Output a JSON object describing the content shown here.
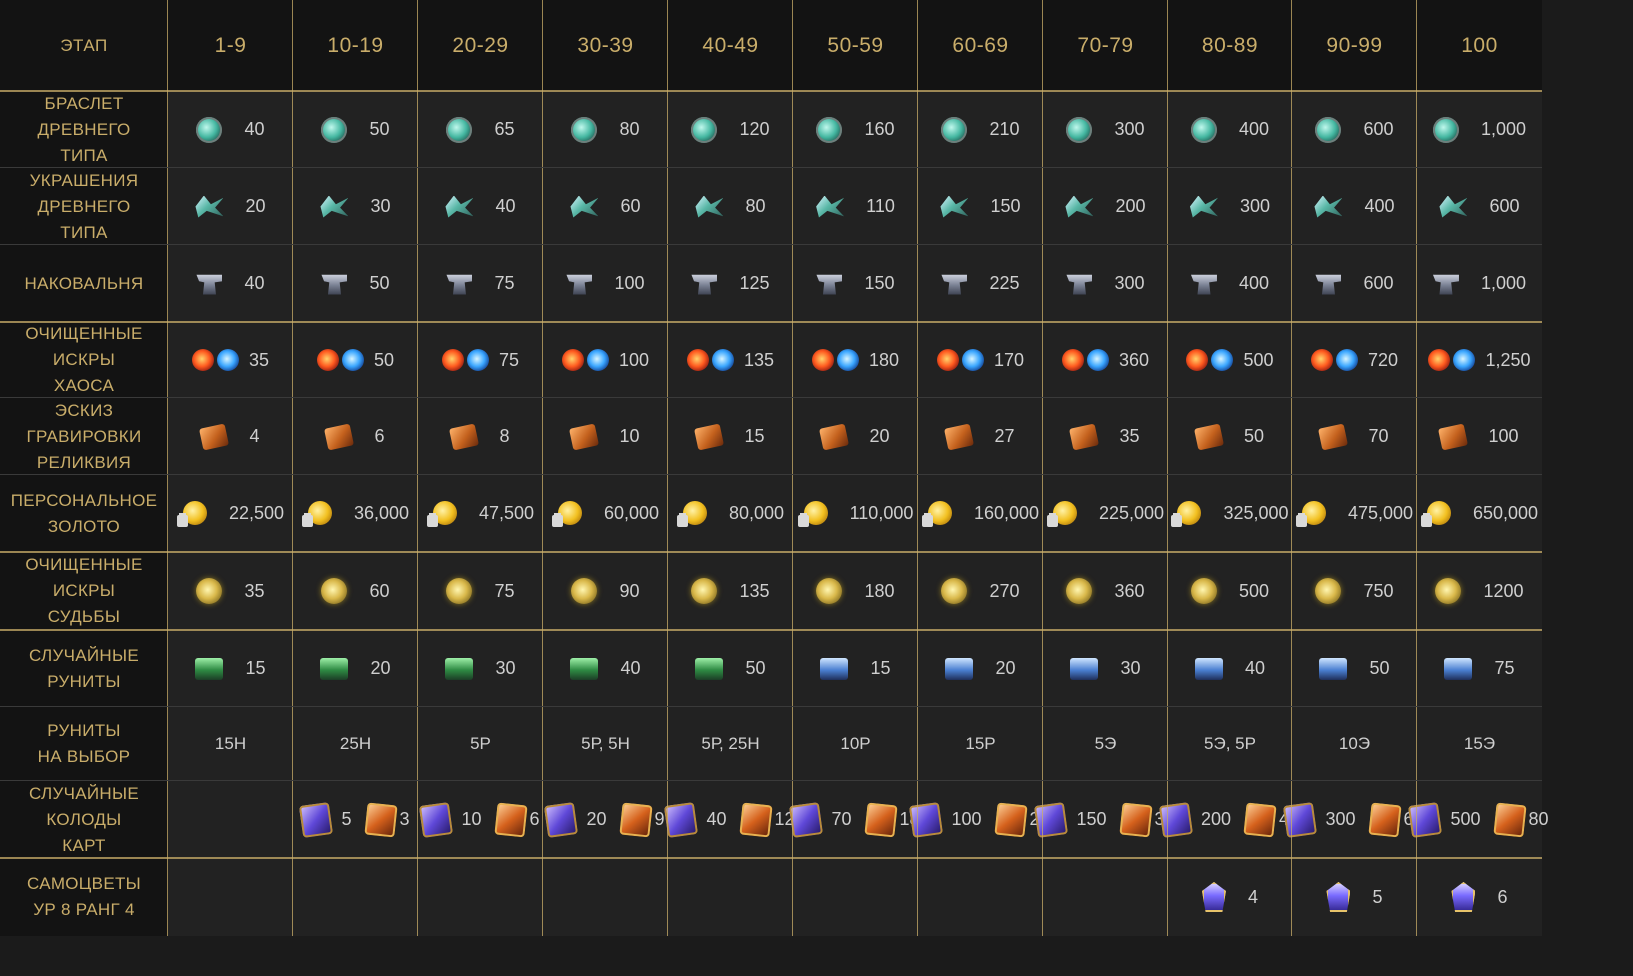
{
  "header": {
    "stage_label": "ЭТАП",
    "columns": [
      "1-9",
      "10-19",
      "20-29",
      "30-39",
      "40-49",
      "50-59",
      "60-69",
      "70-79",
      "80-89",
      "90-99",
      "100"
    ]
  },
  "rows": [
    {
      "label": "БРАСЛЕТ\nДРЕВНЕГО\nТИПА",
      "kind": "icon",
      "icon": "bracelet-icon",
      "values": [
        "40",
        "50",
        "65",
        "80",
        "120",
        "160",
        "210",
        "300",
        "400",
        "600",
        "1,000"
      ]
    },
    {
      "label": "УКРАШЕНИЯ\nДРЕВНЕГО\nТИПА",
      "kind": "icon",
      "icon": "jewelry-icon",
      "values": [
        "20",
        "30",
        "40",
        "60",
        "80",
        "110",
        "150",
        "200",
        "300",
        "400",
        "600"
      ]
    },
    {
      "label": "НАКОВАЛЬНЯ",
      "kind": "icon",
      "icon": "anvil-icon",
      "values": [
        "40",
        "50",
        "75",
        "100",
        "125",
        "150",
        "225",
        "300",
        "400",
        "600",
        "1,000"
      ]
    },
    {
      "label": "ОЧИЩЕННЫЕ\nИСКРЫ\nХАОСА",
      "kind": "icon2",
      "icon": "chaos-spark-icon",
      "values": [
        "35",
        "50",
        "75",
        "100",
        "135",
        "180",
        "170",
        "360",
        "500",
        "720",
        "1,250"
      ]
    },
    {
      "label": "ЭСКИЗ\nГРАВИРОВКИ\nРЕЛИКВИЯ",
      "kind": "icon",
      "icon": "engraving-sketch-icon",
      "values": [
        "4",
        "6",
        "8",
        "10",
        "15",
        "20",
        "27",
        "35",
        "50",
        "70",
        "100"
      ]
    },
    {
      "label": "ПЕРСОНАЛЬНОЕ\nЗОЛОТО",
      "kind": "icon",
      "icon": "bound-gold-icon",
      "values": [
        "22,500",
        "36,000",
        "47,500",
        "60,000",
        "80,000",
        "110,000",
        "160,000",
        "225,000",
        "325,000",
        "475,000",
        "650,000"
      ]
    },
    {
      "label": "ОЧИЩЕННЫЕ\nИСКРЫ\nСУДЬБЫ",
      "kind": "icon",
      "icon": "fate-spark-icon",
      "values": [
        "35",
        "60",
        "75",
        "90",
        "135",
        "180",
        "270",
        "360",
        "500",
        "750",
        "1200"
      ]
    },
    {
      "label": "СЛУЧАЙНЫЕ\nРУНИТЫ",
      "kind": "icon",
      "icon": "runite-chest-icon",
      "icons_per_col": [
        "rune-g",
        "rune-g",
        "rune-g",
        "rune-g",
        "rune-g",
        "rune-b",
        "rune-b",
        "rune-b",
        "rune-b",
        "rune-b",
        "rune-b"
      ],
      "values": [
        "15",
        "20",
        "30",
        "40",
        "50",
        "15",
        "20",
        "30",
        "40",
        "50",
        "75"
      ]
    },
    {
      "label": "РУНИТЫ\nНА ВЫБОР",
      "kind": "text",
      "values": [
        "15Н",
        "25Н",
        "5Р",
        "5Р, 5Н",
        "5Р, 25Н",
        "10Р",
        "15Р",
        "5Э",
        "5Э, 5Р",
        "10Э",
        "15Э"
      ]
    },
    {
      "label": "СЛУЧАЙНЫЕ\nКОЛОДЫ\nКАРТ",
      "kind": "pair",
      "values": [
        null,
        [
          "5",
          "3"
        ],
        [
          "10",
          "6"
        ],
        [
          "20",
          "9"
        ],
        [
          "40",
          "12"
        ],
        [
          "70",
          "18"
        ],
        [
          "100",
          "24"
        ],
        [
          "150",
          "32"
        ],
        [
          "200",
          "42"
        ],
        [
          "300",
          "60"
        ],
        [
          "500",
          "80"
        ]
      ]
    },
    {
      "label": "САМОЦВЕТЫ\nУР 8 РАНГ 4",
      "kind": "icon",
      "icon": "gem-icon",
      "values": [
        null,
        null,
        null,
        null,
        null,
        null,
        null,
        null,
        "4",
        "5",
        "6"
      ]
    }
  ],
  "colors": {
    "gold": "#c9ad6a",
    "header_bg": "#131313",
    "cell_bg": "#222222",
    "text": "#cfcfcf"
  }
}
